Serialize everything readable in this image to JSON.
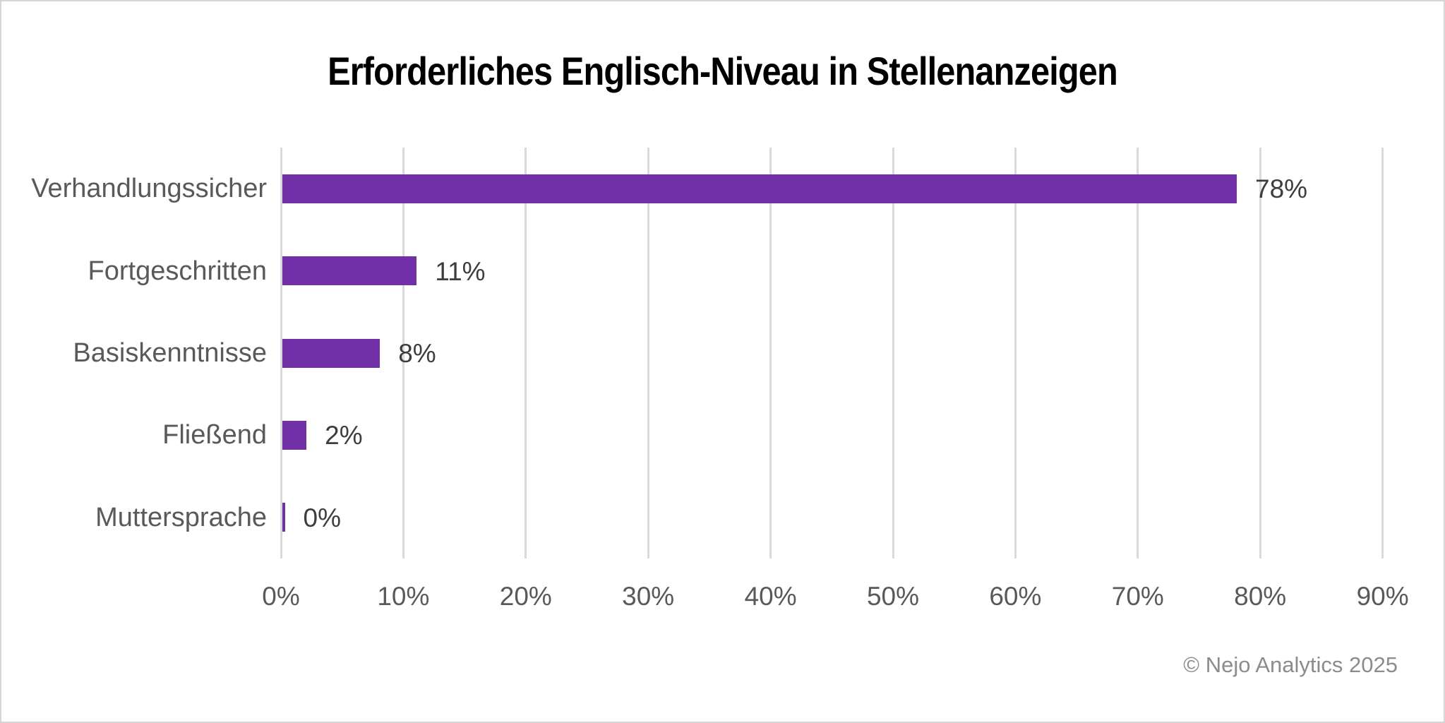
{
  "chart_data": {
    "type": "bar",
    "orientation": "horizontal",
    "title": "Erforderliches Englisch-Niveau in Stellenanzeigen",
    "categories": [
      "Verhandlungssicher",
      "Fortgeschritten",
      "Basiskenntnisse",
      "Fließend",
      "Muttersprache"
    ],
    "values": [
      78,
      11,
      8,
      2,
      0
    ],
    "value_labels": [
      "78%",
      "11%",
      "8%",
      "2%",
      "0%"
    ],
    "x_ticks": [
      "0%",
      "10%",
      "20%",
      "30%",
      "40%",
      "50%",
      "60%",
      "70%",
      "80%",
      "90%"
    ],
    "xlim": [
      0,
      90
    ],
    "grid": "vertical-gridlines",
    "legend": "none",
    "bar_color": "#7230a8",
    "gridline_color": "#d9d9d9",
    "category_label_color": "#595959",
    "tick_label_color": "#595959",
    "value_label_color": "#3d3d3d",
    "title_color": "#000000"
  },
  "footer": {
    "text": "© Nejo Analytics 2025"
  }
}
